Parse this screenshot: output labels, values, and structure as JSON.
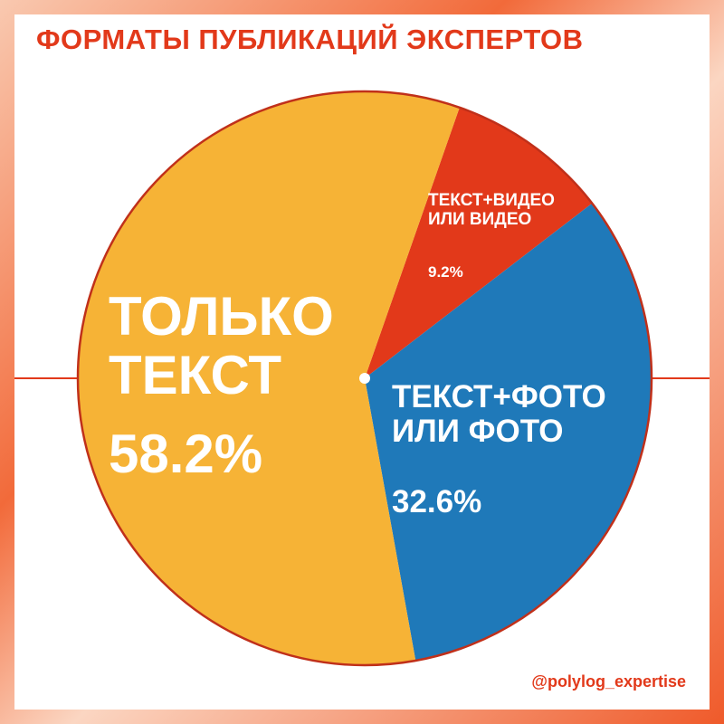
{
  "chart_data": {
    "type": "pie",
    "title": "ФОРМАТЫ ПУБЛИКАЦИЙ ЭКСПЕРТОВ",
    "categories": [
      "ТЕКСТ+ВИДЕО ИЛИ ВИДЕО",
      "ТЕКСТ+ФОТО ИЛИ ФОТО",
      "ТОЛЬКО ТЕКСТ"
    ],
    "values": [
      9.2,
      32.6,
      58.2
    ],
    "value_labels": [
      "9.2%",
      "32.6%",
      "58.2%"
    ],
    "colors": [
      "#e2391a",
      "#1f79b9",
      "#f6b336"
    ],
    "source": "@polylog_expertise"
  }
}
